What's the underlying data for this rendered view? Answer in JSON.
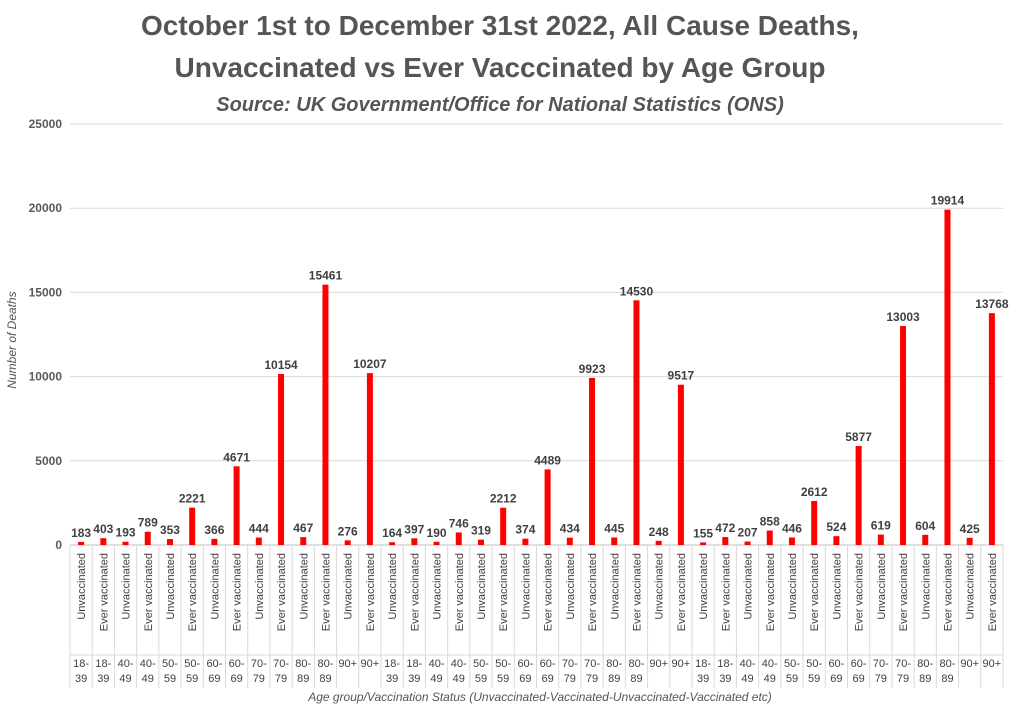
{
  "chart_data": {
    "type": "bar",
    "title": "October 1st to December 31st 2022, All Cause Deaths,",
    "title_line2": "Unvaccinated vs Ever Vacccinated by Age Group",
    "subtitle": "Source: UK Government/Office for National Statistics (ONS)",
    "ylabel": "Number of Deaths",
    "xlabel": "Age group/Vaccination Status (Unvaccinated-Vaccinated-Unvaccinated-Vaccinated etc)",
    "ylim": [
      0,
      25000
    ],
    "yticks": [
      0,
      5000,
      10000,
      15000,
      20000,
      25000
    ],
    "grid": true,
    "bar_color": "#ff0000",
    "categories": [
      "Unvaccinated",
      "Ever vaccinated",
      "Unvaccinated",
      "Ever vaccinated",
      "Unvaccinated",
      "Ever vaccinated",
      "Unvaccinated",
      "Ever vaccinated",
      "Unvaccinated",
      "Ever vaccinated",
      "Unvaccinated",
      "Ever vaccinated",
      "Unvaccinated",
      "Ever vaccinated",
      "Unvaccinated",
      "Ever vaccinated",
      "Unvaccinated",
      "Ever vaccinated",
      "Unvaccinated",
      "Ever vaccinated",
      "Unvaccinated",
      "Ever vaccinated",
      "Unvaccinated",
      "Ever vaccinated",
      "Unvaccinated",
      "Ever vaccinated",
      "Unvaccinated",
      "Ever vaccinated",
      "Unvaccinated",
      "Ever vaccinated",
      "Unvaccinated",
      "Ever vaccinated",
      "Unvaccinated",
      "Ever vaccinated",
      "Unvaccinated",
      "Ever vaccinated",
      "Unvaccinated",
      "Ever vaccinated",
      "Unvaccinated",
      "Ever vaccinated",
      "Unvaccinated",
      "Ever vaccinated"
    ],
    "age_groups": [
      "18-39",
      "18-39",
      "40-49",
      "40-49",
      "50-59",
      "50-59",
      "60-69",
      "60-69",
      "70-79",
      "70-79",
      "80-89",
      "80-89",
      "90+",
      "90+",
      "18-39",
      "18-39",
      "40-49",
      "40-49",
      "50-59",
      "50-59",
      "60-69",
      "60-69",
      "70-79",
      "70-79",
      "80-89",
      "80-89",
      "90+",
      "90+",
      "18-39",
      "18-39",
      "40-49",
      "40-49",
      "50-59",
      "50-59",
      "60-69",
      "60-69",
      "70-79",
      "70-79",
      "80-89",
      "80-89",
      "90+",
      "90+"
    ],
    "values": [
      183,
      403,
      193,
      789,
      353,
      2221,
      366,
      4671,
      444,
      10154,
      467,
      15461,
      276,
      10207,
      164,
      397,
      190,
      746,
      319,
      2212,
      374,
      4489,
      434,
      9923,
      445,
      14530,
      248,
      9517,
      155,
      472,
      207,
      858,
      446,
      2612,
      524,
      5877,
      619,
      13003,
      604,
      19914,
      425,
      13768
    ]
  }
}
